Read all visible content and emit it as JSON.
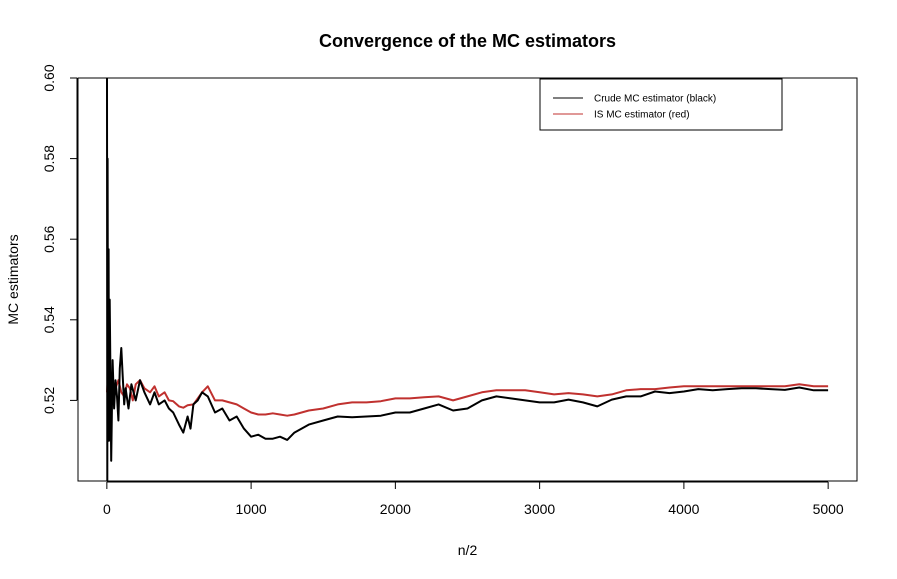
{
  "chart_data": {
    "type": "line",
    "title": "Convergence of the MC estimators",
    "xlabel": "n/2",
    "ylabel": "MC estimators",
    "xlim": [
      -200,
      5200
    ],
    "ylim": [
      0.5,
      0.6
    ],
    "xticks": [
      0,
      1000,
      2000,
      3000,
      4000,
      5000
    ],
    "xtick_labels": [
      "0",
      "1000",
      "2000",
      "3000",
      "4000",
      "5000"
    ],
    "yticks": [
      0.52,
      0.54,
      0.56,
      0.58,
      0.6
    ],
    "ytick_labels": [
      "0.52",
      "0.54",
      "0.56",
      "0.58",
      "0.60"
    ],
    "grid": false,
    "legend_position": "top-right",
    "series": [
      {
        "name": "Crude MC estimator (black)",
        "color": "#000000",
        "x": [
          1,
          3,
          5,
          8,
          12,
          15,
          20,
          25,
          30,
          40,
          50,
          60,
          70,
          80,
          90,
          100,
          110,
          120,
          130,
          150,
          170,
          200,
          230,
          260,
          300,
          330,
          360,
          400,
          430,
          460,
          500,
          530,
          560,
          580,
          600,
          630,
          660,
          700,
          750,
          800,
          850,
          900,
          950,
          1000,
          1050,
          1100,
          1150,
          1200,
          1250,
          1300,
          1400,
          1500,
          1600,
          1700,
          1800,
          1900,
          2000,
          2100,
          2200,
          2300,
          2400,
          2500,
          2600,
          2700,
          2800,
          2900,
          3000,
          3100,
          3200,
          3300,
          3400,
          3500,
          3600,
          3700,
          3800,
          3900,
          4000,
          4100,
          4200,
          4300,
          4400,
          4500,
          4600,
          4700,
          4800,
          4900,
          5000
        ],
        "y": [
          0.6,
          0.5,
          0.58,
          0.52,
          0.5575,
          0.51,
          0.545,
          0.525,
          0.505,
          0.53,
          0.518,
          0.525,
          0.521,
          0.515,
          0.528,
          0.533,
          0.526,
          0.519,
          0.523,
          0.518,
          0.524,
          0.52,
          0.525,
          0.522,
          0.519,
          0.522,
          0.519,
          0.52,
          0.518,
          0.517,
          0.514,
          0.512,
          0.516,
          0.513,
          0.519,
          0.52,
          0.522,
          0.521,
          0.517,
          0.518,
          0.515,
          0.516,
          0.513,
          0.511,
          0.5115,
          0.5105,
          0.5105,
          0.511,
          0.5102,
          0.512,
          0.514,
          0.515,
          0.516,
          0.5158,
          0.516,
          0.5162,
          0.517,
          0.517,
          0.518,
          0.519,
          0.5175,
          0.518,
          0.52,
          0.521,
          0.5205,
          0.52,
          0.5195,
          0.5195,
          0.5202,
          0.5195,
          0.5185,
          0.5202,
          0.521,
          0.521,
          0.5222,
          0.5218,
          0.5222,
          0.5228,
          0.5225,
          0.5228,
          0.523,
          0.523,
          0.5228,
          0.5226,
          0.5232,
          0.5225,
          0.5225
        ]
      },
      {
        "name": "IS MC estimator (red)",
        "color": "#c0312f",
        "x": [
          1,
          10,
          20,
          30,
          40,
          50,
          60,
          80,
          100,
          120,
          140,
          160,
          180,
          200,
          230,
          260,
          300,
          330,
          360,
          400,
          430,
          460,
          500,
          530,
          560,
          600,
          630,
          660,
          700,
          750,
          800,
          850,
          900,
          950,
          1000,
          1050,
          1100,
          1150,
          1200,
          1250,
          1300,
          1400,
          1500,
          1600,
          1700,
          1800,
          1900,
          2000,
          2100,
          2200,
          2300,
          2400,
          2500,
          2600,
          2700,
          2800,
          2900,
          3000,
          3100,
          3200,
          3300,
          3400,
          3500,
          3600,
          3700,
          3800,
          3900,
          4000,
          4100,
          4200,
          4300,
          4400,
          4500,
          4600,
          4700,
          4800,
          4900,
          5000
        ],
        "y": [
          0.522,
          0.527,
          0.522,
          0.524,
          0.526,
          0.521,
          0.523,
          0.525,
          0.522,
          0.521,
          0.524,
          0.523,
          0.52,
          0.524,
          0.525,
          0.523,
          0.522,
          0.5235,
          0.521,
          0.522,
          0.52,
          0.5198,
          0.5185,
          0.5182,
          0.5188,
          0.519,
          0.5205,
          0.522,
          0.5235,
          0.52,
          0.52,
          0.5195,
          0.519,
          0.518,
          0.517,
          0.5165,
          0.5165,
          0.5168,
          0.5165,
          0.5162,
          0.5165,
          0.5175,
          0.518,
          0.519,
          0.5195,
          0.5195,
          0.5198,
          0.5205,
          0.5205,
          0.5208,
          0.521,
          0.52,
          0.521,
          0.522,
          0.5225,
          0.5225,
          0.5225,
          0.522,
          0.5215,
          0.5218,
          0.5215,
          0.521,
          0.5215,
          0.5225,
          0.5228,
          0.5228,
          0.5232,
          0.5235,
          0.5235,
          0.5235,
          0.5235,
          0.5235,
          0.5235,
          0.5235,
          0.5235,
          0.524,
          0.5235,
          0.5235
        ]
      }
    ]
  }
}
